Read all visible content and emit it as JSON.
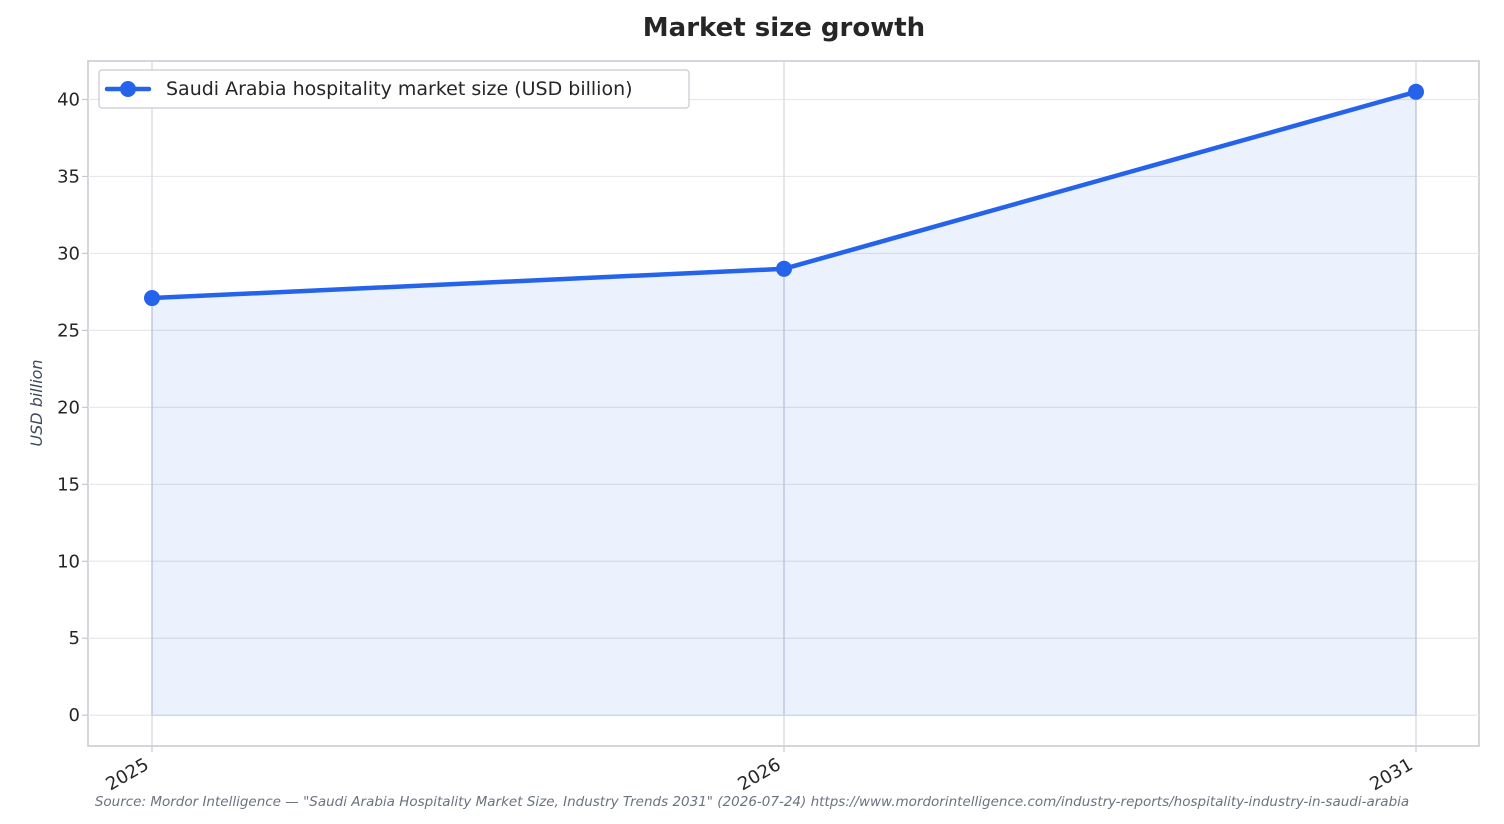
{
  "chart_data": {
    "type": "line",
    "title": "Market size growth",
    "xlabel": "",
    "ylabel": "USD billion",
    "categories": [
      "2025",
      "2026",
      "2031"
    ],
    "series": [
      {
        "name": "Saudi Arabia hospitality market size (USD billion)",
        "values": [
          27.1,
          29.0,
          40.5
        ],
        "color": "#2563eb"
      }
    ],
    "ylim": [
      -2,
      42.5
    ],
    "yticks": [
      "0",
      "5",
      "10",
      "15",
      "20",
      "25",
      "30",
      "35",
      "40"
    ],
    "grid": true,
    "area_fill": true,
    "legend_position": "top-left",
    "source": "Source: Mordor Intelligence — \"Saudi Arabia Hospitality Market Size, Industry Trends 2031\" (2026-07-24) https://www.mordorintelligence.com/industry-reports/hospitality-industry-in-saudi-arabia"
  }
}
